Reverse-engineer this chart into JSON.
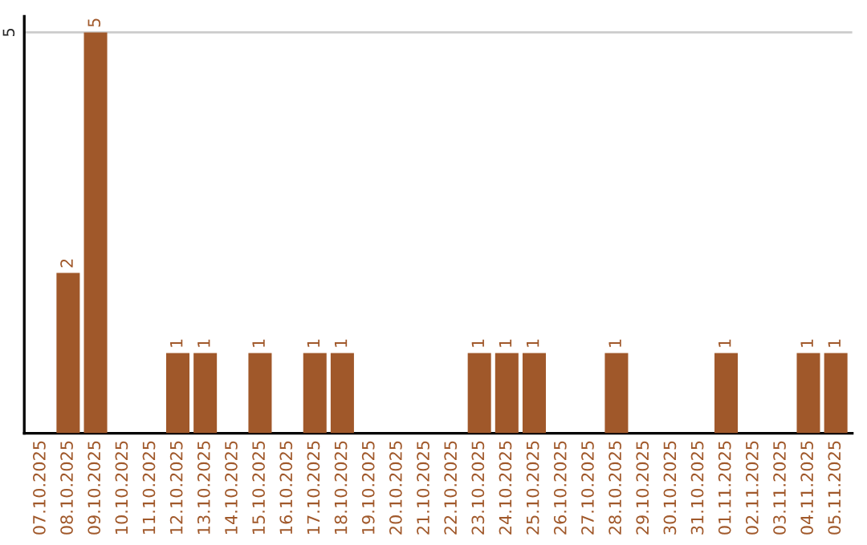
{
  "chart_data": {
    "type": "bar",
    "categories": [
      "07.10.2025",
      "08.10.2025",
      "09.10.2025",
      "10.10.2025",
      "11.10.2025",
      "12.10.2025",
      "13.10.2025",
      "14.10.2025",
      "15.10.2025",
      "16.10.2025",
      "17.10.2025",
      "18.10.2025",
      "19.10.2025",
      "20.10.2025",
      "21.10.2025",
      "22.10.2025",
      "23.10.2025",
      "24.10.2025",
      "25.10.2025",
      "26.10.2025",
      "27.10.2025",
      "28.10.2025",
      "29.10.2025",
      "30.10.2025",
      "31.10.2025",
      "01.11.2025",
      "02.11.2025",
      "03.11.2025",
      "04.11.2025",
      "05.11.2025"
    ],
    "values": [
      0,
      2,
      5,
      0,
      0,
      1,
      1,
      0,
      1,
      0,
      1,
      1,
      0,
      0,
      0,
      0,
      1,
      1,
      1,
      0,
      0,
      1,
      0,
      0,
      0,
      1,
      0,
      0,
      1,
      1
    ],
    "value_labels": [
      null,
      "2",
      "5",
      null,
      null,
      "1",
      "1",
      null,
      "1",
      null,
      "1",
      "1",
      null,
      null,
      null,
      null,
      "1",
      "1",
      "1",
      null,
      null,
      "1",
      null,
      null,
      null,
      "1",
      null,
      null,
      "1",
      "1"
    ],
    "color": "#a0582a",
    "ylim": [
      0,
      5.2
    ],
    "yticks": [
      5
    ],
    "grid": "y"
  }
}
